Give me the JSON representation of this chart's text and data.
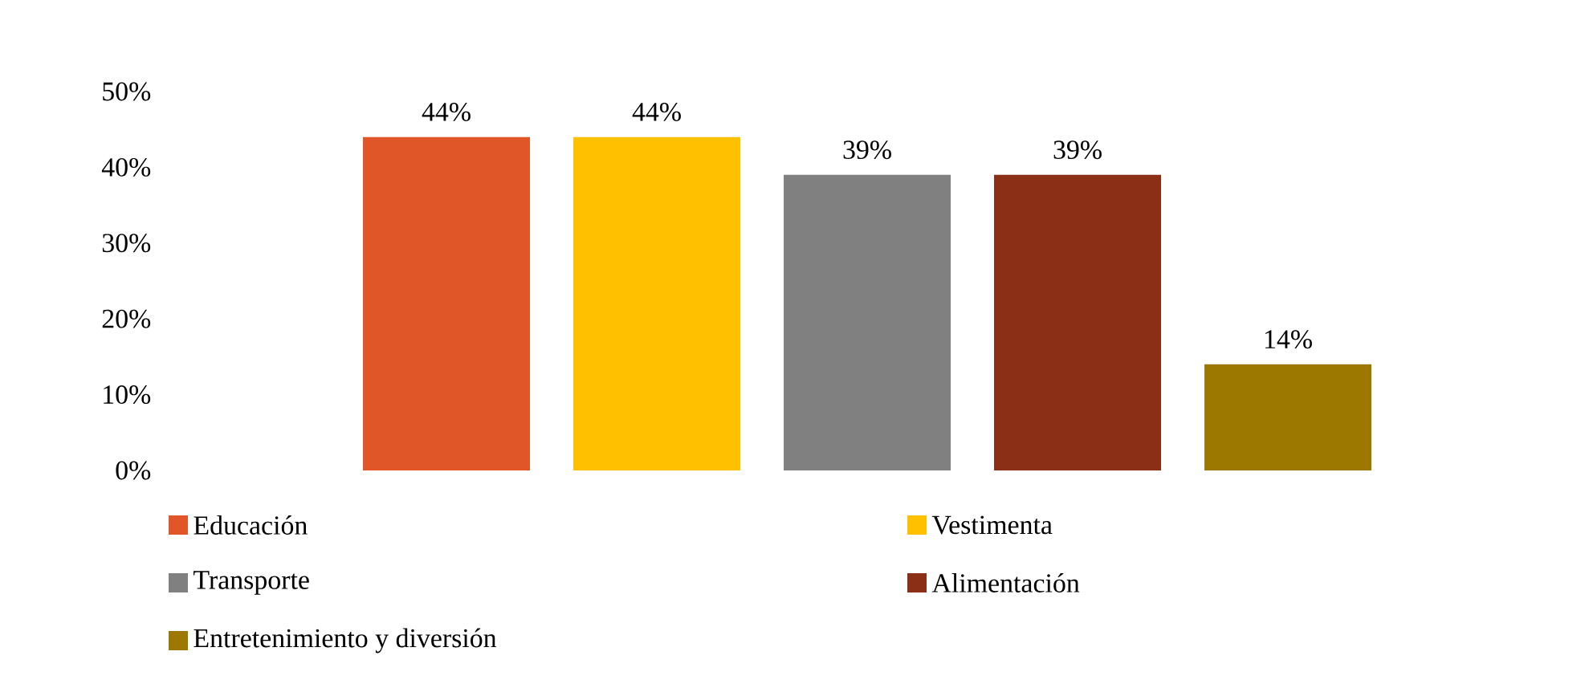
{
  "chart_data": {
    "type": "bar",
    "categories": [
      null
    ],
    "series": [
      {
        "name": "Educación",
        "color": "#e05628",
        "values": [
          44
        ],
        "value_labels": [
          "44%"
        ]
      },
      {
        "name": "Vestimenta",
        "color": "#ffc000",
        "values": [
          44
        ],
        "value_labels": [
          "44%"
        ]
      },
      {
        "name": "Transporte",
        "color": "#808080",
        "values": [
          39
        ],
        "value_labels": [
          "39%"
        ]
      },
      {
        "name": "Alimentación",
        "color": "#8b3017",
        "values": [
          39
        ],
        "value_labels": [
          "39%"
        ]
      },
      {
        "name": "Entretenimiento y diversión",
        "color": "#9c7800",
        "values": [
          14
        ],
        "value_labels": [
          "14%"
        ]
      }
    ],
    "ylim": [
      0,
      50
    ],
    "yticks": [
      {
        "value": 0,
        "label": "0%"
      },
      {
        "value": 10,
        "label": "10%"
      },
      {
        "value": 20,
        "label": "20%"
      },
      {
        "value": 30,
        "label": "30%"
      },
      {
        "value": 40,
        "label": "40%"
      },
      {
        "value": 50,
        "label": "50%"
      }
    ],
    "legend": "bottom",
    "grid": false
  }
}
